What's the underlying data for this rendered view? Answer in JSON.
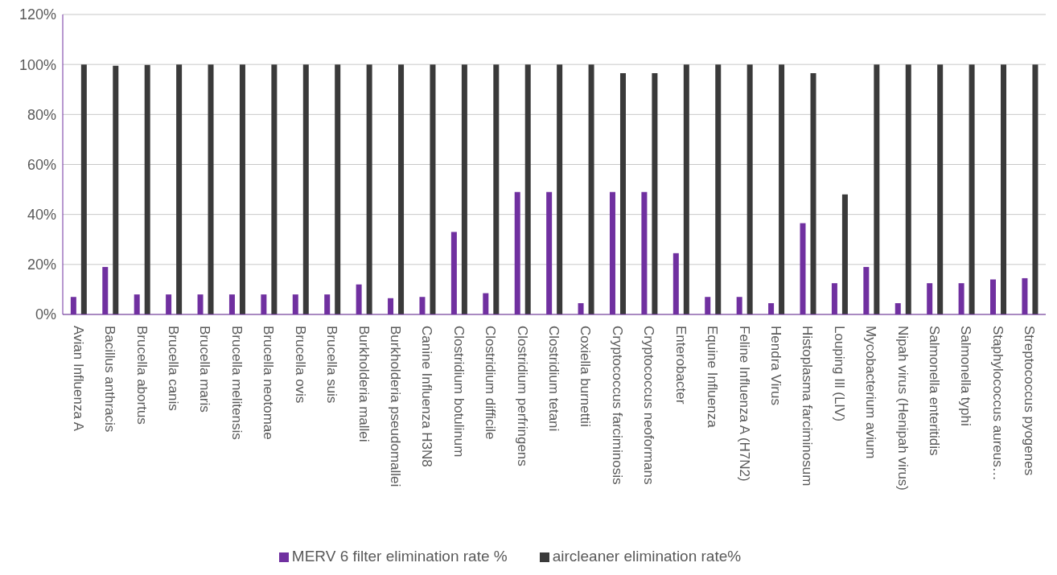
{
  "chart_data": {
    "type": "bar",
    "categories": [
      "Avian Influenza A",
      "Bacillus anthracis",
      "Brucella abortus",
      "Brucella canis",
      "Brucella maris",
      "Brucella melitensis",
      "Brucella neotomae",
      "Brucella ovis",
      "Brucella suis",
      "Burkholderia mallei",
      "Burkholderia pseudomallei",
      "Canine Influenza H3N8",
      "Clostridium botulinum",
      "Clostridium difficile",
      "Clostridium perfringens",
      "Clostridium tetani",
      "Coxiella burnettii",
      "Cryptococcus farciminosis",
      "Cryptococcus neoformans",
      "Enterobacter",
      "Equine Influenza",
      "Feline Influenza A (H7N2)",
      "Hendra Virus",
      "Histoplasma farciminosum",
      "Louping Ill (LIV)",
      "Mycobacterium avium",
      "Nipah virus (Henipah virus)",
      "Salmonella enteritidis",
      "Salmonella typhi",
      "Staphylococcus aureus…",
      "Streptococcus pyogenes"
    ],
    "series": [
      {
        "name": "MERV 6 filter elimination rate %",
        "color": "#7030a0",
        "values": [
          0.07,
          0.19,
          0.08,
          0.08,
          0.08,
          0.08,
          0.08,
          0.08,
          0.08,
          0.12,
          0.065,
          0.07,
          0.33,
          0.085,
          0.49,
          0.49,
          0.045,
          0.49,
          0.49,
          0.245,
          0.07,
          0.07,
          0.045,
          0.365,
          0.125,
          0.19,
          0.045,
          0.125,
          0.125,
          0.14,
          0.145
        ]
      },
      {
        "name": "aircleaner elimination rate%",
        "color": "#3a3a3a",
        "values": [
          1,
          0.995,
          0.998,
          1,
          1,
          1,
          1,
          1,
          1,
          1,
          1,
          1,
          1,
          1,
          1,
          1,
          1,
          0.965,
          0.965,
          1,
          1,
          1,
          1,
          0.965,
          0.48,
          1,
          1,
          1,
          1,
          1,
          1
        ]
      }
    ],
    "ylim": [
      0,
      1.2
    ],
    "yticks": [
      {
        "value": 0,
        "label": "0%"
      },
      {
        "value": 0.2,
        "label": "20%"
      },
      {
        "value": 0.4,
        "label": "40%"
      },
      {
        "value": 0.6,
        "label": "60%"
      },
      {
        "value": 0.8,
        "label": "80%"
      },
      {
        "value": 1,
        "label": "100%"
      },
      {
        "value": 1.2,
        "label": "120%"
      }
    ],
    "grid": "y",
    "legend": "bottom"
  }
}
